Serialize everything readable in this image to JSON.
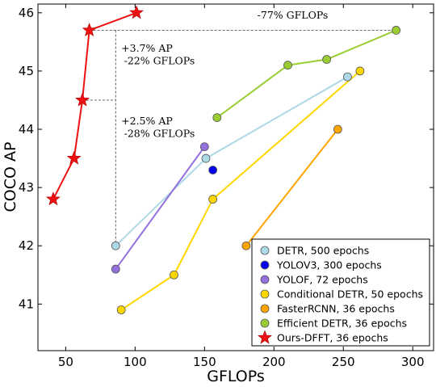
{
  "chart_data": {
    "type": "line",
    "title": "",
    "xlabel": "GFLOPs",
    "ylabel": "COCO AP",
    "xlim": [
      30,
      315
    ],
    "ylim": [
      40.2,
      46.15
    ],
    "xticks": [
      50,
      100,
      150,
      200,
      250,
      300
    ],
    "yticks": [
      41,
      42,
      43,
      44,
      45,
      46
    ],
    "grid": false,
    "legend_position": "bottom-right",
    "series": [
      {
        "name": "DETR, 500 epochs",
        "color": "#add8e6",
        "marker": "circle",
        "points": [
          [
            86,
            42.0
          ],
          [
            151,
            43.5
          ],
          [
            253,
            44.9
          ]
        ]
      },
      {
        "name": "YOLOV3, 300 epochs",
        "color": "#0000ee",
        "marker": "circle",
        "points": [
          [
            156,
            43.3
          ]
        ]
      },
      {
        "name": "YOLOF, 72 epochs",
        "color": "#9370db",
        "marker": "circle",
        "points": [
          [
            86,
            41.6
          ],
          [
            150,
            43.7
          ]
        ]
      },
      {
        "name": "Conditional DETR, 50 epochs",
        "color": "#ffd700",
        "marker": "circle",
        "points": [
          [
            90,
            40.9
          ],
          [
            128,
            41.5
          ],
          [
            156,
            42.8
          ],
          [
            262,
            45.0
          ]
        ]
      },
      {
        "name": "FasterRCNN, 36 epochs",
        "color": "#ffa500",
        "marker": "circle",
        "points": [
          [
            180,
            42.0
          ],
          [
            246,
            44.0
          ]
        ]
      },
      {
        "name": "Efficient DETR, 36 epochs",
        "color": "#9acd32",
        "marker": "circle",
        "points": [
          [
            159,
            44.2
          ],
          [
            210,
            45.1
          ],
          [
            238,
            45.2
          ],
          [
            288,
            45.7
          ]
        ]
      },
      {
        "name": "Ours-DFFT, 36 epochs",
        "color": "#ee1111",
        "marker": "star",
        "points": [
          [
            41,
            42.8
          ],
          [
            56,
            43.5
          ],
          [
            62,
            44.5
          ],
          [
            67,
            45.7
          ],
          [
            101,
            46.0
          ]
        ]
      }
    ],
    "annotations": [
      {
        "text": "-77% GFLOPs",
        "x": 188,
        "y": 45.9
      },
      {
        "text": "+3.7% AP",
        "x": 90,
        "y": 45.33
      },
      {
        "text": "-22% GFLOPs",
        "x": 92,
        "y": 45.12
      },
      {
        "text": "+2.5% AP",
        "x": 90,
        "y": 44.08
      },
      {
        "text": "-28% GFLOPs",
        "x": 92,
        "y": 43.87
      }
    ],
    "reference_lines": [
      {
        "points": [
          [
            67,
            45.7
          ],
          [
            288,
            45.7
          ]
        ],
        "style": "dashed"
      },
      {
        "points": [
          [
            62,
            44.5
          ],
          [
            86,
            44.5
          ]
        ],
        "style": "dashed"
      },
      {
        "points": [
          [
            86,
            45.7
          ],
          [
            86,
            42.0
          ]
        ],
        "style": "dashed"
      }
    ]
  }
}
